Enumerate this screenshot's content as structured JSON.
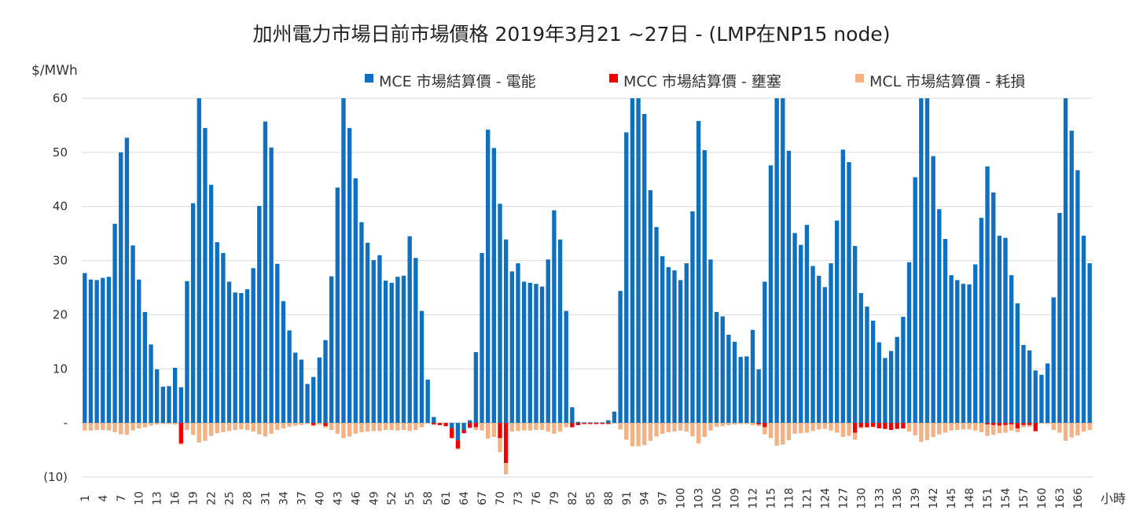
{
  "chart_data": {
    "type": "bar",
    "title": "加州電力市場日前市場價格 2019年3月21 ~27日 - (LMP在NP15 node)",
    "ylabel": "$/MWh",
    "xlabel": "小時",
    "ylim": [
      -10,
      60
    ],
    "y_ticks": [
      60,
      50,
      40,
      30,
      20,
      10,
      0,
      -10
    ],
    "y_tick_labels": [
      "60",
      "50",
      "40",
      "30",
      "20",
      "10",
      "-",
      "(10)"
    ],
    "x_start": 1,
    "x_count": 168,
    "x_tick_labels": [
      "1",
      "4",
      "7",
      "10",
      "13",
      "16",
      "19",
      "22",
      "25",
      "28",
      "31",
      "34",
      "37",
      "40",
      "43",
      "46",
      "49",
      "52",
      "55",
      "58",
      "61",
      "64",
      "67",
      "70",
      "73",
      "76",
      "79",
      "82",
      "85",
      "88",
      "91",
      "94",
      "97",
      "100",
      "103",
      "106",
      "109",
      "112",
      "115",
      "118",
      "121",
      "124",
      "127",
      "130",
      "133",
      "136",
      "139",
      "142",
      "145",
      "148",
      "151",
      "154",
      "157",
      "160",
      "163",
      "166"
    ],
    "stacked": true,
    "grid": true,
    "legend_position": "top",
    "colors": {
      "MCE": "#1070C0",
      "MCC": "#F00000",
      "MCL": "#F4B183",
      "grid": "#D9D9D9",
      "axis": "#BFBFBF",
      "text": "#333333"
    },
    "series": [
      {
        "name": "MCE 市場結算價 - 電能",
        "values": [
          27.7,
          26.5,
          26.4,
          26.8,
          27.0,
          36.8,
          50.0,
          52.7,
          32.8,
          26.5,
          20.5,
          14.5,
          9.9,
          6.7,
          6.8,
          10.2,
          6.6,
          26.2,
          40.6,
          60.0,
          54.5,
          44.0,
          33.4,
          31.4,
          26.1,
          24.1,
          24.0,
          24.7,
          28.6,
          40.1,
          55.7,
          50.9,
          29.4,
          22.5,
          17.1,
          13.0,
          11.7,
          7.2,
          8.5,
          12.1,
          15.3,
          27.1,
          43.5,
          60.0,
          54.5,
          45.2,
          37.1,
          33.3,
          30.1,
          31.0,
          26.3,
          25.9,
          27.0,
          27.2,
          34.5,
          30.5,
          20.7,
          8.0,
          1.1,
          0.0,
          0.0,
          -1.0,
          -3.2,
          -1.3,
          0.5,
          13.1,
          31.4,
          54.2,
          50.8,
          40.5,
          33.9,
          28.0,
          29.5,
          26.1,
          25.9,
          25.7,
          25.2,
          30.2,
          39.3,
          33.9,
          20.7,
          2.9,
          0.2,
          0.1,
          0.1,
          0.1,
          0.1,
          0.5,
          2.1,
          24.4,
          53.7,
          60.0,
          60.0,
          57.1,
          43.0,
          36.2,
          30.8,
          28.8,
          28.2,
          26.4,
          29.5,
          39.1,
          55.8,
          50.4,
          30.2,
          20.5,
          19.7,
          16.3,
          15.0,
          12.2,
          12.3,
          17.2,
          9.9,
          26.1,
          47.6,
          60.0,
          60.0,
          50.3,
          35.1,
          32.9,
          36.6,
          29.0,
          27.2,
          25.1,
          29.5,
          37.4,
          50.5,
          48.2,
          32.7,
          24.0,
          21.5,
          18.9,
          14.9,
          12.0,
          13.3,
          15.9,
          19.6,
          29.7,
          45.4,
          60.0,
          60.0,
          49.3,
          39.5,
          34.0,
          27.3,
          26.4,
          25.7,
          25.6,
          29.3,
          37.9,
          47.4,
          42.6,
          34.6,
          34.2,
          27.3,
          22.1,
          14.4,
          13.4,
          9.7,
          8.9,
          11.0,
          23.2,
          38.8,
          60.0,
          54.0,
          46.7,
          34.6,
          29.5
        ]
      },
      {
        "name": "MCC 市場結算價 - 壅塞",
        "values": [
          0,
          0,
          0,
          0,
          0,
          0,
          0,
          0,
          0,
          0,
          0,
          0,
          0,
          0,
          0,
          0,
          -3.8,
          0,
          0,
          0,
          0,
          0,
          0,
          0,
          0,
          0,
          0,
          0,
          0,
          0,
          0,
          0,
          0,
          0,
          0,
          0,
          0,
          0,
          -0.4,
          0,
          -0.6,
          0,
          0,
          0,
          0,
          0,
          0,
          0,
          0,
          0,
          0,
          0,
          0,
          0,
          0,
          0,
          0,
          0,
          -0.3,
          -0.4,
          -0.6,
          -1.8,
          -1.5,
          -0.6,
          -0.9,
          -0.8,
          0,
          0,
          0,
          -2.8,
          -7.4,
          0,
          0,
          0,
          0,
          0,
          0,
          0,
          0,
          0,
          0,
          -0.8,
          -0.4,
          -0.2,
          -0.2,
          -0.2,
          -0.2,
          -0.2,
          0,
          0,
          0,
          0,
          0,
          0,
          0,
          0,
          0,
          0,
          0,
          0,
          0,
          0,
          0,
          0,
          0,
          0,
          0,
          0,
          0,
          0,
          0,
          0,
          -0.3,
          -0.8,
          0,
          0,
          0,
          0,
          0,
          0,
          0,
          0,
          0,
          0,
          0,
          0,
          0,
          0,
          -1.8,
          -0.8,
          -0.8,
          -0.7,
          -1.0,
          -1.1,
          -1.3,
          -1.1,
          -1.0,
          0,
          0,
          0,
          0,
          0,
          0,
          0,
          0,
          0,
          0,
          0,
          0,
          0,
          -0.3,
          -0.4,
          -0.5,
          -0.4,
          -0.3,
          -1.0,
          -0.4,
          -0.4,
          -1.5,
          0,
          0,
          0,
          0,
          0,
          0,
          0
        ]
      },
      {
        "name": "MCL 市場結算價 - 耗損",
        "values": [
          -1.4,
          -1.4,
          -1.3,
          -1.3,
          -1.4,
          -1.7,
          -2.1,
          -2.2,
          -1.4,
          -1.0,
          -0.8,
          -0.5,
          -0.3,
          -0.2,
          -0.2,
          -0.3,
          -0.2,
          -1.3,
          -2.2,
          -3.6,
          -3.3,
          -2.4,
          -1.9,
          -1.7,
          -1.5,
          -1.3,
          -1.2,
          -1.3,
          -1.6,
          -2.1,
          -2.5,
          -2.0,
          -1.3,
          -1.0,
          -0.7,
          -0.5,
          -0.4,
          -0.2,
          -0.2,
          -0.3,
          -0.3,
          -1.3,
          -2.0,
          -2.8,
          -2.5,
          -2.0,
          -1.7,
          -1.6,
          -1.5,
          -1.5,
          -1.3,
          -1.3,
          -1.4,
          -1.3,
          -1.5,
          -1.3,
          -0.8,
          -0.1,
          0,
          0,
          0,
          0,
          -0.2,
          0,
          0,
          -0.5,
          -1.4,
          -2.9,
          -2.6,
          -2.6,
          -2.1,
          -1.6,
          -1.5,
          -1.4,
          -1.4,
          -1.3,
          -1.3,
          -1.6,
          -2.0,
          -1.6,
          -0.8,
          0,
          0,
          0,
          0,
          0,
          0,
          0,
          0,
          -1.2,
          -3.1,
          -4.3,
          -4.3,
          -4.1,
          -3.3,
          -2.5,
          -2.0,
          -1.7,
          -1.6,
          -1.4,
          -1.6,
          -2.5,
          -3.8,
          -2.6,
          -1.4,
          -0.7,
          -0.6,
          -0.4,
          -0.3,
          -0.2,
          -0.2,
          -0.4,
          -0.3,
          -1.3,
          -2.8,
          -4.2,
          -4.0,
          -3.2,
          -2.0,
          -1.9,
          -1.8,
          -1.5,
          -1.2,
          -1.1,
          -1.4,
          -1.8,
          -2.6,
          -2.4,
          -1.3,
          -0.2,
          -0.1,
          -0.1,
          0,
          0,
          0,
          0,
          -0.1,
          -1.6,
          -2.3,
          -3.5,
          -3.2,
          -2.6,
          -2.1,
          -1.8,
          -1.4,
          -1.3,
          -1.2,
          -1.2,
          -1.4,
          -1.7,
          -2.1,
          -1.8,
          -1.4,
          -1.4,
          -1.1,
          -0.7,
          -0.4,
          -0.3,
          -0.1,
          -0.1,
          -0.2,
          -1.3,
          -1.8,
          -3.3,
          -2.7,
          -2.3,
          -1.6,
          -1.3
        ]
      }
    ]
  }
}
